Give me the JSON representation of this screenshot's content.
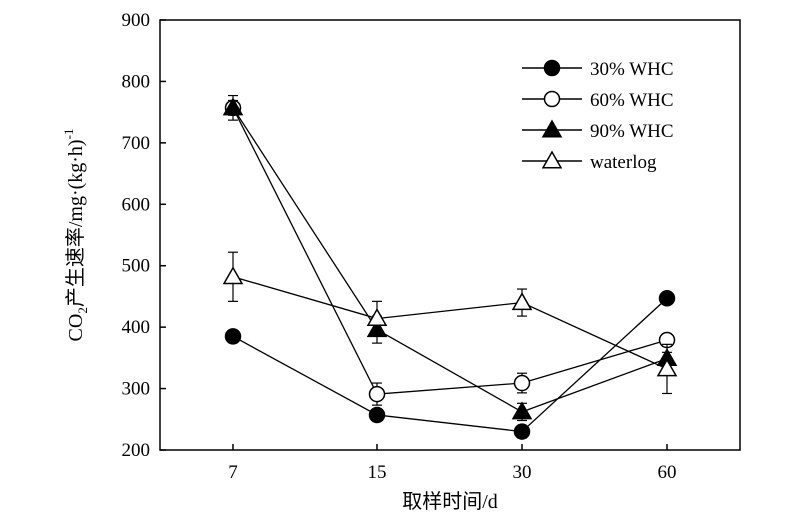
{
  "chart_data": {
    "type": "line",
    "title": "",
    "xlabel": "取样时间/d",
    "ylabel_parts": {
      "main": "CO",
      "sub": "2",
      "rest": "产生速率/mg·(kg·h)",
      "sup": "-1"
    },
    "categories": [
      "7",
      "15",
      "30",
      "60"
    ],
    "ylim": [
      200,
      900
    ],
    "yticks": [
      200,
      300,
      400,
      500,
      600,
      700,
      800,
      900
    ],
    "grid": false,
    "legend_position": "top-right",
    "series": [
      {
        "name": "30% WHC",
        "marker": "circle",
        "fill": "filled",
        "values": [
          385,
          257,
          230,
          447
        ],
        "errors": [
          10,
          8,
          10,
          6
        ]
      },
      {
        "name": "60% WHC",
        "marker": "circle",
        "fill": "open",
        "values": [
          757,
          291,
          309,
          379
        ],
        "errors": [
          12,
          18,
          16,
          10
        ]
      },
      {
        "name": "90% WHC",
        "marker": "triangle",
        "fill": "filled",
        "values": [
          757,
          396,
          262,
          349
        ],
        "errors": [
          20,
          22,
          14,
          10
        ]
      },
      {
        "name": "waterlog",
        "marker": "triangle",
        "fill": "open",
        "values": [
          482,
          414,
          440,
          332
        ],
        "errors": [
          40,
          28,
          22,
          40
        ]
      }
    ]
  }
}
